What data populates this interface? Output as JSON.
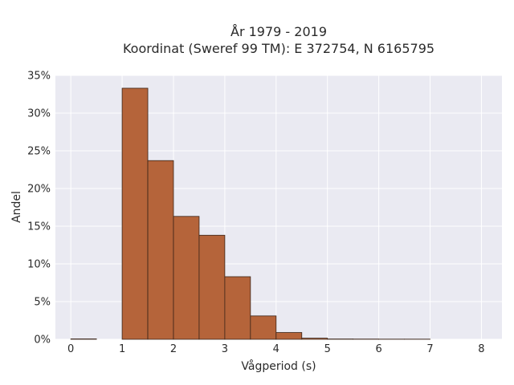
{
  "chart_data": {
    "type": "bar",
    "title": "År 1979 - 2019",
    "subtitle": "Koordinat (Sweref 99 TM): E 372754, N 6165795",
    "xlabel": "Vågperiod (s)",
    "ylabel": "Andel",
    "xlim": [
      -0.3,
      8.4
    ],
    "ylim": [
      0,
      0.35
    ],
    "x_ticks": [
      0,
      1,
      2,
      3,
      4,
      5,
      6,
      7,
      8
    ],
    "x_tick_labels": [
      "0",
      "1",
      "2",
      "3",
      "4",
      "5",
      "6",
      "7",
      "8"
    ],
    "y_ticks": [
      0,
      0.05,
      0.1,
      0.15,
      0.2,
      0.25,
      0.3,
      0.35
    ],
    "y_tick_labels": [
      "0%",
      "5%",
      "10%",
      "15%",
      "20%",
      "25%",
      "30%",
      "35%"
    ],
    "grid": true,
    "bar_color": "#b5643a",
    "bar_edge_color": "#3a2418",
    "background_color": "#eaeaf2",
    "bins": [
      {
        "start": 0.0,
        "end": 0.5,
        "value": 0.0005
      },
      {
        "start": 0.5,
        "end": 1.0,
        "value": 0.0
      },
      {
        "start": 1.0,
        "end": 1.5,
        "value": 0.333
      },
      {
        "start": 1.5,
        "end": 2.0,
        "value": 0.237
      },
      {
        "start": 2.0,
        "end": 2.5,
        "value": 0.163
      },
      {
        "start": 2.5,
        "end": 3.0,
        "value": 0.138
      },
      {
        "start": 3.0,
        "end": 3.5,
        "value": 0.083
      },
      {
        "start": 3.5,
        "end": 4.0,
        "value": 0.031
      },
      {
        "start": 4.0,
        "end": 4.5,
        "value": 0.009
      },
      {
        "start": 4.5,
        "end": 5.0,
        "value": 0.0015
      },
      {
        "start": 5.0,
        "end": 5.5,
        "value": 0.0004
      },
      {
        "start": 5.5,
        "end": 6.0,
        "value": 0.0003
      },
      {
        "start": 6.0,
        "end": 6.5,
        "value": 0.0002
      },
      {
        "start": 6.5,
        "end": 7.0,
        "value": 0.0002
      }
    ]
  }
}
